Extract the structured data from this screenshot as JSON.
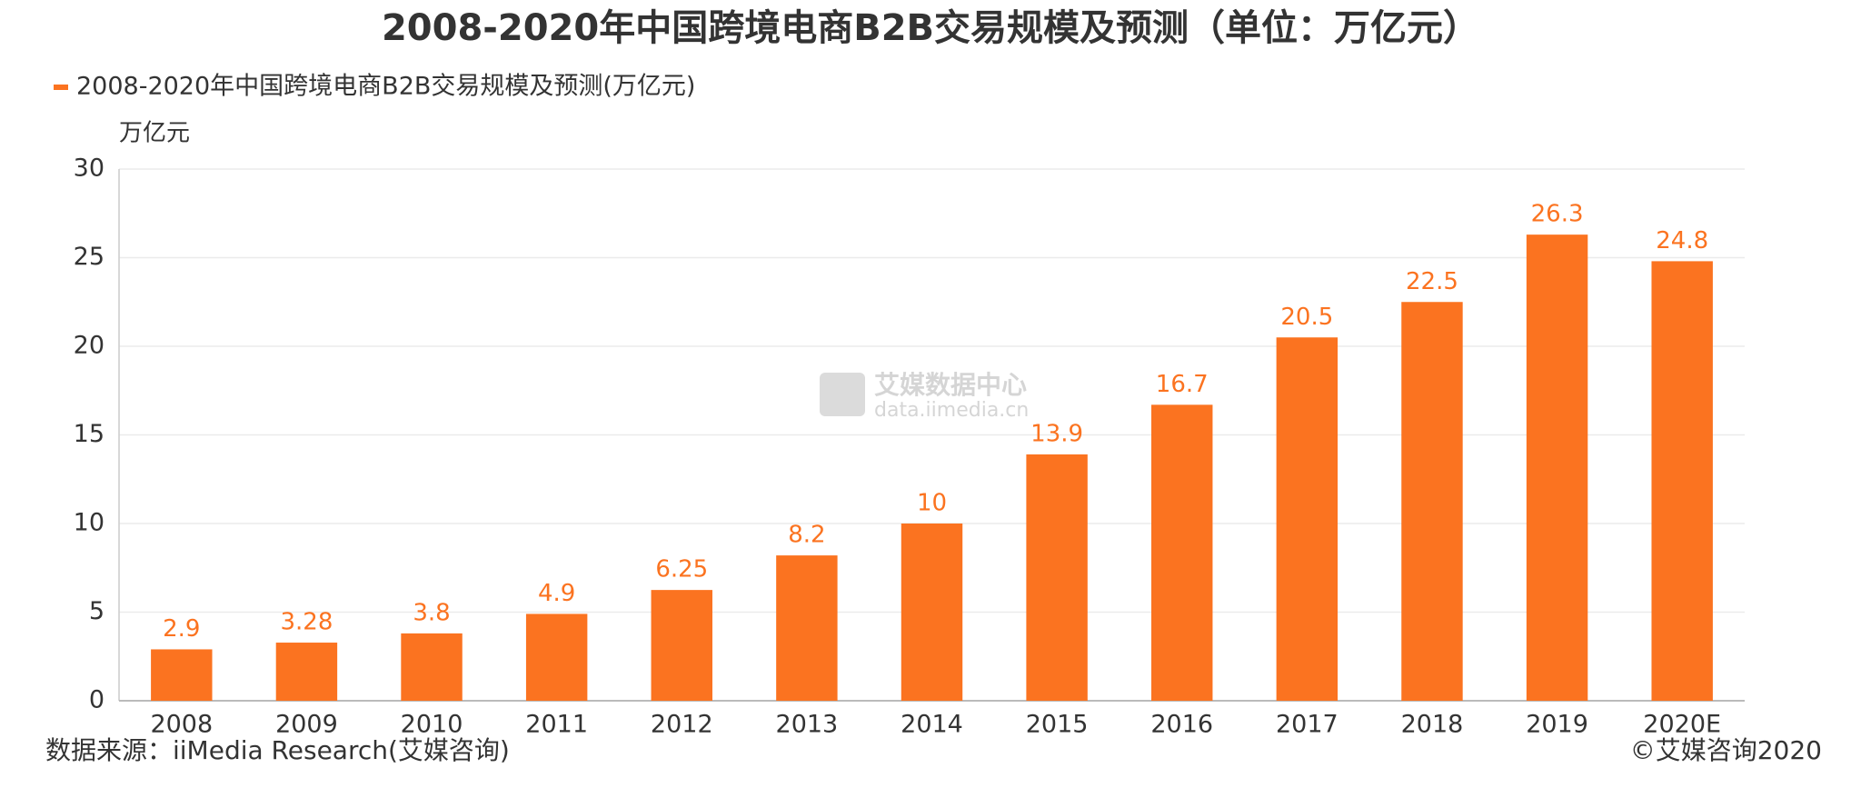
{
  "chart_data": {
    "type": "bar",
    "title": "2008-2020年中国跨境电商B2B交易规模及预测（单位：万亿元）",
    "y_label": "万亿元",
    "categories": [
      "2008",
      "2009",
      "2010",
      "2011",
      "2012",
      "2013",
      "2014",
      "2015",
      "2016",
      "2017",
      "2018",
      "2019",
      "2020E"
    ],
    "series": [
      {
        "name": "2008-2020年中国跨境电商B2B交易规模及预测(万亿元)",
        "color": "#fb7320",
        "values": [
          2.9,
          3.28,
          3.8,
          4.9,
          6.25,
          8.2,
          10,
          13.9,
          16.7,
          20.5,
          22.5,
          26.3,
          24.8
        ]
      }
    ],
    "ylim": [
      0,
      30
    ],
    "yticks": [
      0,
      5,
      10,
      15,
      20,
      25,
      30
    ],
    "grid": true,
    "legend": "top-left",
    "watermark": [
      "艾媒数据中心",
      "data.iimedia.cn"
    ],
    "source": "数据来源：iiMedia Research(艾媒咨询)",
    "copyright": "©艾媒咨询2020"
  }
}
